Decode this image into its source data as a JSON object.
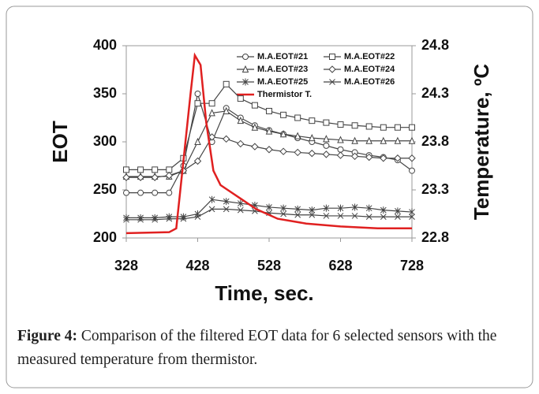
{
  "chart_data": {
    "type": "line",
    "x_label": "Time, sec.",
    "y_label": "EOT",
    "y2_label": "Temperature, ºC",
    "x": [
      328,
      348,
      368,
      388,
      408,
      428,
      448,
      468,
      488,
      508,
      528,
      548,
      568,
      588,
      608,
      628,
      648,
      668,
      688,
      708,
      728
    ],
    "xlim": [
      328,
      728
    ],
    "xticks": [
      328,
      428,
      528,
      628,
      728
    ],
    "ylim": [
      200,
      400
    ],
    "yticks": [
      200,
      250,
      300,
      350,
      400
    ],
    "y2lim": [
      22.8,
      24.8
    ],
    "y2ticks": [
      {
        "value": 22.8,
        "label": "22.8"
      },
      {
        "value": 23.3,
        "label": "23.3"
      },
      {
        "value": 23.8,
        "label": "23.8"
      },
      {
        "value": 24.3,
        "label": "24.3"
      },
      {
        "value": 24.8,
        "label": "24.8"
      }
    ],
    "grid": false,
    "series": [
      {
        "name": "M.A.EOT#21",
        "color": "#444444",
        "marker": "circle",
        "values": [
          247,
          247,
          247,
          247,
          275,
          350,
          300,
          335,
          325,
          317,
          312,
          308,
          304,
          300,
          296,
          292,
          289,
          286,
          284,
          281,
          270
        ]
      },
      {
        "name": "M.A.EOT#22",
        "color": "#444444",
        "marker": "square",
        "values": [
          271,
          271,
          271,
          271,
          283,
          340,
          340,
          360,
          345,
          338,
          332,
          328,
          325,
          322,
          320,
          318,
          317,
          316,
          315,
          315,
          315
        ]
      },
      {
        "name": "M.A.EOT#23",
        "color": "#444444",
        "marker": "triangle",
        "values": [
          264,
          264,
          264,
          264,
          270,
          300,
          330,
          332,
          322,
          315,
          311,
          308,
          306,
          304,
          303,
          302,
          301,
          301,
          301,
          301,
          301
        ]
      },
      {
        "name": "M.A.EOT#24",
        "color": "#444444",
        "marker": "diamond",
        "values": [
          263,
          263,
          263,
          265,
          270,
          280,
          305,
          303,
          298,
          295,
          292,
          290,
          289,
          288,
          287,
          286,
          285,
          284,
          283,
          283,
          283
        ]
      },
      {
        "name": "M.A.EOT#25",
        "color": "#444444",
        "marker": "star",
        "values": [
          221,
          221,
          221,
          222,
          222,
          225,
          240,
          238,
          236,
          234,
          232,
          231,
          230,
          229,
          231,
          231,
          232,
          231,
          229,
          228,
          227
        ]
      },
      {
        "name": "M.A.EOT#26",
        "color": "#444444",
        "marker": "x",
        "values": [
          219,
          219,
          219,
          220,
          220,
          222,
          230,
          230,
          229,
          228,
          226,
          225,
          224,
          224,
          223,
          223,
          223,
          222,
          222,
          222,
          222
        ]
      },
      {
        "name": "Thermistor T.",
        "color": "#e02020",
        "axis": "y2",
        "x": [
          328,
          388,
          398,
          408,
          418,
          424,
          432,
          440,
          450,
          460,
          470,
          490,
          510,
          540,
          580,
          628,
          680,
          728
        ],
        "values": [
          22.85,
          22.86,
          22.9,
          23.6,
          24.3,
          24.7,
          24.6,
          24.0,
          23.5,
          23.35,
          23.3,
          23.2,
          23.1,
          23.0,
          22.95,
          22.92,
          22.9,
          22.9
        ]
      }
    ]
  },
  "caption": {
    "label": "Figure 4:",
    "text": "Comparison of the filtered EOT data for 6 selected sensors with the measured temperature from thermistor."
  }
}
